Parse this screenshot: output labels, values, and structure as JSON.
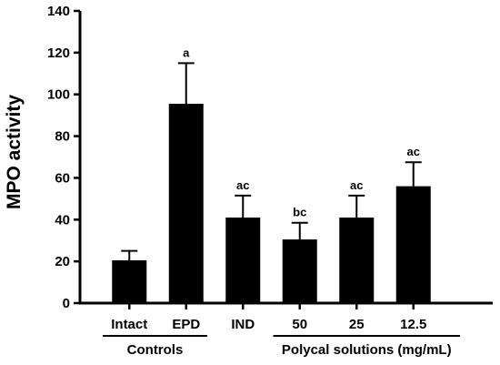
{
  "chart_data": {
    "type": "bar",
    "ylabel": "MPO activity",
    "xlabel": "",
    "ylim": [
      0,
      140
    ],
    "yticks": [
      0,
      20,
      40,
      60,
      80,
      100,
      120,
      140
    ],
    "categories": [
      "Intact",
      "EPD",
      "IND",
      "50",
      "25",
      "12.5"
    ],
    "values": [
      20.5,
      95.5,
      41,
      30.5,
      41,
      56
    ],
    "errors": [
      4.5,
      19.5,
      10.5,
      8,
      10.5,
      11.5
    ],
    "significance": [
      "",
      "a",
      "ac",
      "bc",
      "ac",
      "ac"
    ],
    "groups": [
      {
        "label": "Controls",
        "categories": [
          "Intact",
          "EPD"
        ]
      },
      {
        "label": "Polycal solutions (mg/mL)",
        "categories": [
          "50",
          "25",
          "12.5"
        ]
      }
    ],
    "bar_color": "#000000",
    "grid": false,
    "legend": "none"
  }
}
